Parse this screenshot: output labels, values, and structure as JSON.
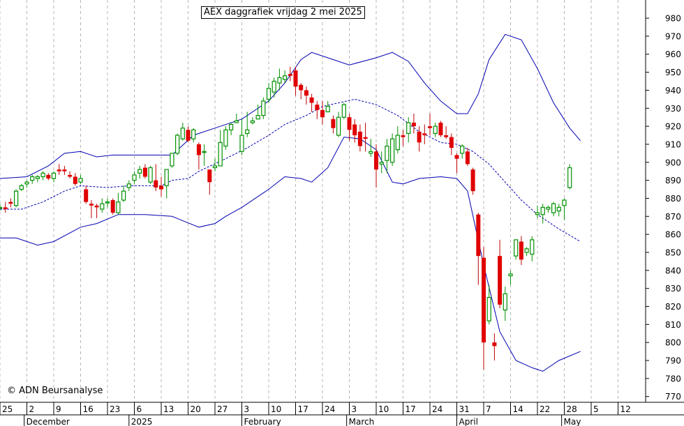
{
  "title": "AEX daggrafiek vrijdag 2 mei 2025",
  "copyright": "© ADN Beursanalyse",
  "chart_data": {
    "type": "candlestick",
    "title": "AEX daggrafiek vrijdag 2 mei 2025",
    "ylim": [
      770,
      990
    ],
    "y_ticks": [
      770,
      780,
      790,
      800,
      810,
      820,
      830,
      840,
      850,
      860,
      870,
      880,
      890,
      900,
      910,
      920,
      930,
      940,
      950,
      960,
      970,
      980
    ],
    "x_day_ticks": [
      {
        "i": 0,
        "label": "25"
      },
      {
        "i": 5,
        "label": "2"
      },
      {
        "i": 10,
        "label": "9"
      },
      {
        "i": 15,
        "label": "16"
      },
      {
        "i": 20,
        "label": "23"
      },
      {
        "i": 25,
        "label": "6"
      },
      {
        "i": 30,
        "label": "13"
      },
      {
        "i": 35,
        "label": "20"
      },
      {
        "i": 40,
        "label": "27"
      },
      {
        "i": 45,
        "label": "3"
      },
      {
        "i": 50,
        "label": "10"
      },
      {
        "i": 55,
        "label": "17"
      },
      {
        "i": 60,
        "label": "24"
      },
      {
        "i": 65,
        "label": "3"
      },
      {
        "i": 70,
        "label": "10"
      },
      {
        "i": 75,
        "label": "17"
      },
      {
        "i": 80,
        "label": "24"
      },
      {
        "i": 85,
        "label": "31"
      },
      {
        "i": 90,
        "label": "7"
      },
      {
        "i": 95,
        "label": "14"
      },
      {
        "i": 100,
        "label": "22"
      },
      {
        "i": 105,
        "label": "28"
      },
      {
        "i": 110,
        "label": "5"
      },
      {
        "i": 115,
        "label": "12"
      }
    ],
    "x_month_ticks": [
      {
        "i": 4.5,
        "label": "December"
      },
      {
        "i": 24,
        "label": "2025"
      },
      {
        "i": 45,
        "label": "February"
      },
      {
        "i": 64.5,
        "label": "March"
      },
      {
        "i": 85,
        "label": "April"
      },
      {
        "i": 104.5,
        "label": "May"
      }
    ],
    "candles": [
      [
        875,
        877,
        873,
        875
      ],
      [
        875,
        878,
        872,
        874
      ],
      [
        878,
        880,
        875,
        877
      ],
      [
        876,
        885,
        875,
        884
      ],
      [
        885,
        888,
        884,
        887
      ],
      [
        888,
        890,
        886,
        889
      ],
      [
        890,
        893,
        888,
        892
      ],
      [
        891,
        893,
        889,
        892
      ],
      [
        892,
        895,
        890,
        894
      ],
      [
        893,
        894,
        890,
        891
      ],
      [
        891,
        895,
        889,
        894
      ],
      [
        896,
        899,
        893,
        895
      ],
      [
        896,
        898,
        893,
        895
      ],
      [
        893,
        895,
        891,
        892
      ],
      [
        892,
        894,
        887,
        888
      ],
      [
        889,
        893,
        888,
        891
      ],
      [
        885,
        887,
        877,
        878
      ],
      [
        877,
        879,
        869,
        876
      ],
      [
        876,
        877,
        869,
        875
      ],
      [
        874,
        880,
        872,
        877
      ],
      [
        878,
        880,
        875,
        878
      ],
      [
        879,
        880,
        871,
        872
      ],
      [
        872,
        883,
        871,
        878
      ],
      [
        879,
        887,
        878,
        884
      ],
      [
        886,
        890,
        884,
        888
      ],
      [
        890,
        895,
        888,
        893
      ],
      [
        894,
        898,
        891,
        896
      ],
      [
        897,
        899,
        891,
        892
      ],
      [
        889,
        898,
        888,
        897
      ],
      [
        890,
        899,
        884,
        886
      ],
      [
        887,
        892,
        881,
        885
      ],
      [
        887,
        896,
        880,
        896
      ],
      [
        898,
        905,
        897,
        905
      ],
      [
        905,
        916,
        904,
        915
      ],
      [
        913,
        922,
        912,
        919
      ],
      [
        918,
        920,
        911,
        912
      ],
      [
        913,
        919,
        911,
        918
      ],
      [
        910,
        911,
        896,
        904
      ],
      [
        906,
        910,
        898,
        906
      ],
      [
        896,
        896,
        882,
        889
      ],
      [
        897,
        902,
        895,
        898
      ],
      [
        898,
        918,
        898,
        911
      ],
      [
        909,
        920,
        907,
        918
      ],
      [
        918,
        922,
        915,
        921
      ],
      [
        922,
        927,
        922,
        923
      ],
      [
        906,
        924,
        904,
        915
      ],
      [
        916,
        928,
        914,
        918
      ],
      [
        922,
        925,
        921,
        923
      ],
      [
        924,
        932,
        924,
        926
      ],
      [
        926,
        936,
        924,
        934
      ],
      [
        935,
        944,
        933,
        941
      ],
      [
        939,
        947,
        936,
        945
      ],
      [
        944,
        952,
        940,
        947
      ],
      [
        946,
        951,
        944,
        948
      ],
      [
        949,
        953,
        945,
        948
      ],
      [
        951,
        953,
        937,
        942
      ],
      [
        943,
        944,
        935,
        940
      ],
      [
        940,
        942,
        932,
        937
      ],
      [
        936,
        938,
        928,
        933
      ],
      [
        932,
        934,
        924,
        929
      ],
      [
        929,
        934,
        921,
        925
      ],
      [
        928,
        934,
        928,
        931
      ],
      [
        924,
        926,
        916,
        919
      ],
      [
        915,
        928,
        914,
        925
      ],
      [
        925,
        933,
        924,
        932
      ],
      [
        925,
        927,
        912,
        918
      ],
      [
        921,
        924,
        911,
        915
      ],
      [
        917,
        921,
        906,
        909
      ],
      [
        914,
        922,
        906,
        913
      ],
      [
        905,
        913,
        903,
        906
      ],
      [
        906,
        910,
        886,
        896
      ],
      [
        899,
        906,
        894,
        900
      ],
      [
        901,
        913,
        894,
        909
      ],
      [
        900,
        916,
        898,
        913
      ],
      [
        907,
        920,
        905,
        915
      ],
      [
        915,
        918,
        909,
        914
      ],
      [
        916,
        925,
        911,
        922
      ],
      [
        922,
        927,
        916,
        920
      ],
      [
        917,
        920,
        906,
        911
      ],
      [
        916,
        921,
        910,
        915
      ],
      [
        920,
        927,
        915,
        919
      ],
      [
        916,
        922,
        914,
        920
      ],
      [
        922,
        923,
        914,
        915
      ],
      [
        915,
        920,
        913,
        914
      ],
      [
        914,
        916,
        904,
        908
      ],
      [
        904,
        905,
        894,
        902
      ],
      [
        905,
        910,
        902,
        909
      ],
      [
        906,
        908,
        898,
        899
      ],
      [
        896,
        897,
        882,
        884
      ],
      [
        871,
        872,
        832,
        848
      ],
      [
        847,
        853,
        785,
        800
      ],
      [
        812,
        832,
        810,
        825
      ],
      [
        800,
        805,
        790,
        798
      ],
      [
        848,
        857,
        819,
        821
      ],
      [
        818,
        831,
        812,
        827
      ],
      [
        837,
        840,
        832,
        838
      ],
      [
        848,
        856,
        846,
        857
      ],
      [
        856,
        859,
        843,
        846
      ],
      [
        850,
        853,
        848,
        852
      ],
      [
        849,
        859,
        845,
        857
      ],
      [
        871,
        876,
        869,
        872
      ],
      [
        871,
        877,
        866,
        875
      ],
      [
        874,
        876,
        872,
        875
      ],
      [
        872,
        878,
        870,
        877
      ],
      [
        873,
        877,
        870,
        875
      ],
      [
        876,
        880,
        868,
        879
      ],
      [
        886,
        899,
        885,
        897
      ]
    ],
    "upper_band": [
      [
        0,
        891
      ],
      [
        5,
        892
      ],
      [
        9,
        898
      ],
      [
        12,
        905
      ],
      [
        15,
        906
      ],
      [
        18,
        903
      ],
      [
        21,
        904
      ],
      [
        32,
        904
      ],
      [
        36,
        915
      ],
      [
        40,
        919
      ],
      [
        45,
        924
      ],
      [
        50,
        934
      ],
      [
        53,
        944
      ],
      [
        56,
        957
      ],
      [
        58,
        961
      ],
      [
        61,
        958
      ],
      [
        65,
        954
      ],
      [
        70,
        958
      ],
      [
        73,
        961
      ],
      [
        76,
        956
      ],
      [
        79,
        944
      ],
      [
        82,
        934
      ],
      [
        85,
        927
      ],
      [
        87,
        927
      ],
      [
        89,
        938
      ],
      [
        91,
        957
      ],
      [
        94,
        971
      ],
      [
        97,
        968
      ],
      [
        100,
        952
      ],
      [
        103,
        933
      ],
      [
        106,
        919
      ],
      [
        108,
        912
      ]
    ],
    "middle_band": [
      [
        0,
        874
      ],
      [
        4,
        874
      ],
      [
        8,
        878
      ],
      [
        12,
        884
      ],
      [
        15,
        887
      ],
      [
        20,
        886
      ],
      [
        24,
        887
      ],
      [
        30,
        887
      ],
      [
        32,
        890
      ],
      [
        35,
        891
      ],
      [
        37,
        895
      ],
      [
        42,
        902
      ],
      [
        46,
        908
      ],
      [
        50,
        915
      ],
      [
        53,
        921
      ],
      [
        57,
        926
      ],
      [
        60,
        931
      ],
      [
        63,
        933
      ],
      [
        66,
        935
      ],
      [
        70,
        932
      ],
      [
        74,
        926
      ],
      [
        78,
        917
      ],
      [
        82,
        911
      ],
      [
        85,
        910
      ],
      [
        88,
        906
      ],
      [
        91,
        899
      ],
      [
        94,
        889
      ],
      [
        97,
        879
      ],
      [
        100,
        871
      ],
      [
        104,
        863
      ],
      [
        108,
        856
      ]
    ],
    "lower_band": [
      [
        0,
        858
      ],
      [
        3,
        858
      ],
      [
        7,
        854
      ],
      [
        10,
        856
      ],
      [
        15,
        864
      ],
      [
        18,
        866
      ],
      [
        22,
        871
      ],
      [
        27,
        871
      ],
      [
        32,
        870
      ],
      [
        37,
        864
      ],
      [
        40,
        866
      ],
      [
        42,
        870
      ],
      [
        45,
        875
      ],
      [
        50,
        885
      ],
      [
        53,
        892
      ],
      [
        56,
        891
      ],
      [
        58,
        889
      ],
      [
        61,
        897
      ],
      [
        64,
        914
      ],
      [
        67,
        913
      ],
      [
        70,
        907
      ],
      [
        73,
        889
      ],
      [
        75,
        888
      ],
      [
        78,
        891
      ],
      [
        82,
        892
      ],
      [
        85,
        891
      ],
      [
        87,
        884
      ],
      [
        90,
        843
      ],
      [
        93,
        806
      ],
      [
        96,
        790
      ],
      [
        99,
        786
      ],
      [
        101,
        784
      ],
      [
        104,
        790
      ],
      [
        108,
        795
      ]
    ]
  }
}
